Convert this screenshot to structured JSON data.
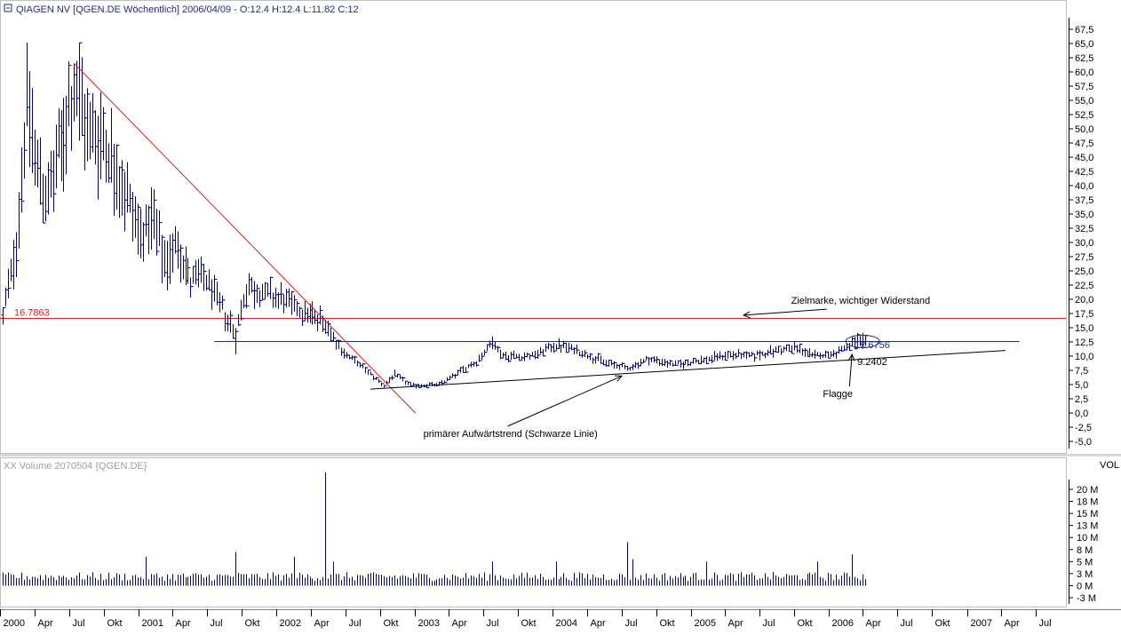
{
  "chart_data": [
    {
      "type": "ohlc",
      "title": "QIAGEN NV [QGEN.DE  Wöchentlich] 2006/04/09 - O:12.4 H:12.4 L:11.82 C:12",
      "ylim": [
        -5,
        67.5
      ],
      "y_ticks": [
        "67,5",
        "65,0",
        "62,5",
        "60,0",
        "57,5",
        "55,0",
        "52,5",
        "50,0",
        "47,5",
        "45,0",
        "42,5",
        "40,0",
        "37,5",
        "35,0",
        "32,5",
        "30,0",
        "27,5",
        "25,0",
        "22,5",
        "20,0",
        "17,5",
        "15,0",
        "12,5",
        "10,0",
        "7,5",
        "5,0",
        "2,5",
        "0,0",
        "-2,5",
        "-5,0"
      ],
      "grid": false,
      "series": [
        {
          "weekly_bars_start": "2000-01-07",
          "weekly_bars_end": "2006-04-09",
          "anchor_points": [
            {
              "x": "2000-01-07",
              "y": 17
            },
            {
              "x": "2000-02-11",
              "y": 30
            },
            {
              "x": "2000-03-10",
              "y": 55
            },
            {
              "x": "2000-04-07",
              "y": 43
            },
            {
              "x": "2000-05-05",
              "y": 38
            },
            {
              "x": "2000-06-02",
              "y": 45
            },
            {
              "x": "2000-07-14",
              "y": 58
            },
            {
              "x": "2000-08-18",
              "y": 50
            },
            {
              "x": "2000-10-06",
              "y": 48
            },
            {
              "x": "2000-11-17",
              "y": 40
            },
            {
              "x": "2001-01-05",
              "y": 32
            },
            {
              "x": "2001-02-09",
              "y": 33
            },
            {
              "x": "2001-03-09",
              "y": 26
            },
            {
              "x": "2001-04-13",
              "y": 30
            },
            {
              "x": "2001-05-18",
              "y": 23
            },
            {
              "x": "2001-06-22",
              "y": 24
            },
            {
              "x": "2001-07-27",
              "y": 20
            },
            {
              "x": "2001-09-14",
              "y": 14
            },
            {
              "x": "2001-10-12",
              "y": 22
            },
            {
              "x": "2001-11-30",
              "y": 21
            },
            {
              "x": "2002-01-11",
              "y": 20
            },
            {
              "x": "2002-03-08",
              "y": 18
            },
            {
              "x": "2002-05-10",
              "y": 16
            },
            {
              "x": "2002-06-21",
              "y": 11
            },
            {
              "x": "2002-08-16",
              "y": 8
            },
            {
              "x": "2002-10-11",
              "y": 4.8
            },
            {
              "x": "2002-11-08",
              "y": 6.8
            },
            {
              "x": "2002-12-20",
              "y": 4.8
            },
            {
              "x": "2003-03-07",
              "y": 5
            },
            {
              "x": "2003-04-18",
              "y": 6.8
            },
            {
              "x": "2003-06-13",
              "y": 9
            },
            {
              "x": "2003-07-25",
              "y": 12.5
            },
            {
              "x": "2003-08-22",
              "y": 10
            },
            {
              "x": "2003-11-07",
              "y": 10
            },
            {
              "x": "2004-01-09",
              "y": 12
            },
            {
              "x": "2004-03-05",
              "y": 11
            },
            {
              "x": "2004-05-14",
              "y": 9
            },
            {
              "x": "2004-07-16",
              "y": 7.8
            },
            {
              "x": "2004-09-10",
              "y": 9.5
            },
            {
              "x": "2004-11-19",
              "y": 8.5
            },
            {
              "x": "2005-02-04",
              "y": 9.3
            },
            {
              "x": "2005-04-08",
              "y": 10.3
            },
            {
              "x": "2005-06-10",
              "y": 10
            },
            {
              "x": "2005-08-12",
              "y": 11
            },
            {
              "x": "2005-10-07",
              "y": 11.5
            },
            {
              "x": "2005-11-18",
              "y": 10
            },
            {
              "x": "2006-01-13",
              "y": 10.5
            },
            {
              "x": "2006-03-10",
              "y": 12.2
            },
            {
              "x": "2006-04-09",
              "y": 12
            }
          ]
        }
      ],
      "spikes": [
        {
          "x": "2000-07-14",
          "high": 61.5
        },
        {
          "x": "2001-09-14",
          "low": 10.3
        }
      ],
      "horizontal_lines": [
        {
          "y": 16.7863,
          "label": "16.7863",
          "color": "#d42020"
        },
        {
          "y": 12.6756,
          "label": "12.6756",
          "color": "#1f2a8a"
        }
      ],
      "trend_lines": [
        {
          "name": "red-downtrend",
          "from": {
            "x": "2000-07-14",
            "y": 61.5
          },
          "to": {
            "x": "2003-01-03",
            "y": 0
          },
          "color": "#d42020"
        },
        {
          "name": "black-uptrend",
          "from": {
            "x": "2002-09-06",
            "y": 4.2
          },
          "to": {
            "x": "2007-04-13",
            "y": 11.0
          },
          "color": "#000000"
        }
      ],
      "annotations": [
        {
          "text": "Zielmarke, wichtiger Widerstand",
          "x": "2005-09-23",
          "y": 19.2,
          "arrow_to": {
            "x": "2005-05-20",
            "y": 17.2
          }
        },
        {
          "text": "12.6756",
          "x": "2006-03-10",
          "y": 11.4
        },
        {
          "text": "9.2402",
          "x": "2006-03-17",
          "y": 8.4
        },
        {
          "text": "Flagge",
          "x": "2005-12-16",
          "y": 2.8,
          "arrow_to": {
            "x": "2006-03-03",
            "y": 10.3
          }
        },
        {
          "text": "primärer Aufwärtstrend (Schwarze Linie)",
          "x": "2003-01-24",
          "y": -4.2,
          "arrow_to": {
            "x": "2004-07-02",
            "y": 6.5
          }
        }
      ],
      "flag_marker": {
        "x": "2006-03-03",
        "y": 12.6
      }
    },
    {
      "type": "bar",
      "title": "XX Volume 2070504 {QGEN.DE}",
      "ylabel": "VOL",
      "ylim": [
        -3,
        22
      ],
      "y_ticks": [
        "20 M",
        "18 M",
        "15 M",
        "13 M",
        "10 M",
        "8 M",
        "5 M",
        "3 M",
        "0 M",
        "-3 M"
      ],
      "y_tick_values": [
        20,
        17.5,
        15,
        12.5,
        10,
        7.5,
        5,
        2.5,
        0,
        -2.5
      ],
      "bars_start": "2000-01-07",
      "bars_end": "2006-04-09",
      "base_level_m": 2.0,
      "spikes": [
        {
          "x": "2001-01-19",
          "value": 6
        },
        {
          "x": "2001-09-14",
          "value": 7
        },
        {
          "x": "2002-02-15",
          "value": 6
        },
        {
          "x": "2002-05-10",
          "value": 23.5
        },
        {
          "x": "2002-05-31",
          "value": 5
        },
        {
          "x": "2003-07-25",
          "value": 5
        },
        {
          "x": "2004-01-09",
          "value": 5
        },
        {
          "x": "2004-07-16",
          "value": 9
        },
        {
          "x": "2004-07-30",
          "value": 5.5
        },
        {
          "x": "2005-02-11",
          "value": 5
        },
        {
          "x": "2005-12-02",
          "value": 5
        },
        {
          "x": "2006-03-03",
          "value": 6.5
        }
      ]
    }
  ],
  "time_axis": {
    "range": [
      "1999-12-31",
      "2007-09-20"
    ],
    "ticks": [
      {
        "label": "2000",
        "x": "2000-01-01"
      },
      {
        "label": "Apr",
        "x": "2000-04-01"
      },
      {
        "label": "Jul",
        "x": "2000-07-01"
      },
      {
        "label": "Okt",
        "x": "2000-10-01"
      },
      {
        "label": "2001",
        "x": "2001-01-01"
      },
      {
        "label": "Apr",
        "x": "2001-04-01"
      },
      {
        "label": "Jul",
        "x": "2001-07-01"
      },
      {
        "label": "Okt",
        "x": "2001-10-01"
      },
      {
        "label": "2002",
        "x": "2002-01-01"
      },
      {
        "label": "Apr",
        "x": "2002-04-01"
      },
      {
        "label": "Jul",
        "x": "2002-07-01"
      },
      {
        "label": "Okt",
        "x": "2002-10-01"
      },
      {
        "label": "2003",
        "x": "2003-01-01"
      },
      {
        "label": "Apr",
        "x": "2003-04-01"
      },
      {
        "label": "Jul",
        "x": "2003-07-01"
      },
      {
        "label": "Okt",
        "x": "2003-10-01"
      },
      {
        "label": "2004",
        "x": "2004-01-01"
      },
      {
        "label": "Apr",
        "x": "2004-04-01"
      },
      {
        "label": "Jul",
        "x": "2004-07-01"
      },
      {
        "label": "Okt",
        "x": "2004-10-01"
      },
      {
        "label": "2005",
        "x": "2005-01-01"
      },
      {
        "label": "Apr",
        "x": "2005-04-01"
      },
      {
        "label": "Jul",
        "x": "2005-07-01"
      },
      {
        "label": "Okt",
        "x": "2005-10-01"
      },
      {
        "label": "2006",
        "x": "2006-01-01"
      },
      {
        "label": "Apr",
        "x": "2006-04-01"
      },
      {
        "label": "Jul",
        "x": "2006-07-01"
      },
      {
        "label": "Okt",
        "x": "2006-10-01"
      },
      {
        "label": "2007",
        "x": "2007-01-01"
      },
      {
        "label": "Apr",
        "x": "2007-04-01"
      },
      {
        "label": "Jul",
        "x": "2007-07-01"
      }
    ]
  },
  "colors": {
    "bars": "#000080",
    "volume": "#000080",
    "red": "#d42020",
    "blue_line": "#1f2a8a",
    "panel_border": "#b8b8b8",
    "title_text": "#1f2a8a",
    "volume_title_text": "#a0a0a0"
  },
  "icons": {
    "title_icon": "chart-icon"
  }
}
